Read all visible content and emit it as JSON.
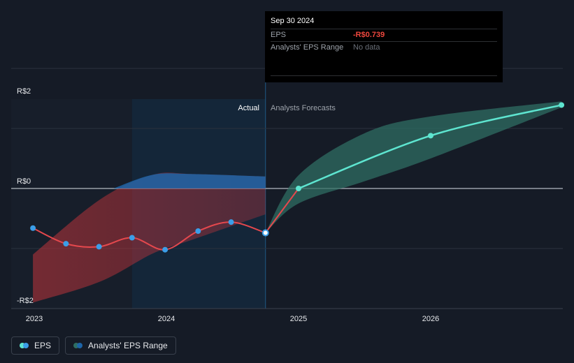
{
  "chart_data": {
    "type": "line",
    "y_tick_labels": [
      "R$2",
      "R$0",
      "-R$2"
    ],
    "x_tick_labels": [
      "2023",
      "2024",
      "2025",
      "2026"
    ],
    "ylim": [
      -2,
      2
    ],
    "xlim": [
      2022.92,
      2026.97
    ],
    "divider_labels": {
      "actual": "Actual",
      "forecast": "Analysts Forecasts"
    },
    "actual_eps": {
      "name": "EPS",
      "x": [
        2022.99,
        2023.24,
        2023.49,
        2023.74,
        2023.99,
        2024.24,
        2024.49,
        2024.75
      ],
      "y": [
        -0.66,
        -0.92,
        -0.97,
        -0.82,
        -1.02,
        -0.71,
        -0.56,
        -0.739
      ]
    },
    "forecast_eps": {
      "x": [
        2024.75,
        2025.0,
        2026.0,
        2026.99
      ],
      "y": [
        -0.739,
        0.0,
        0.88,
        1.39
      ]
    },
    "actual_range": {
      "x": [
        2022.99,
        2023.5,
        2023.9,
        2024.2,
        2024.75
      ],
      "upper": [
        -1.1,
        -0.18,
        0.23,
        0.24,
        0.2
      ],
      "lower": [
        -1.9,
        -1.55,
        -1.08,
        -0.85,
        -0.43
      ]
    },
    "forecast_range": {
      "x": [
        2024.75,
        2025.0,
        2025.5,
        2026.0,
        2026.99
      ],
      "upper": [
        -0.739,
        0.22,
        0.92,
        1.2,
        1.45
      ],
      "lower": [
        -0.739,
        -0.25,
        0.12,
        0.5,
        1.35
      ]
    },
    "shaded_period": [
      2023.74,
      2024.75
    ],
    "grid": true,
    "legend_position": "bottom-left"
  },
  "tooltip": {
    "date": "Sep 30 2024",
    "eps_label": "EPS",
    "eps_value": "-R$0.739",
    "range_label": "Analysts' EPS Range",
    "range_value": "No data"
  },
  "legend": {
    "eps_label": "EPS",
    "range_label": "Analysts' EPS Range"
  },
  "colors": {
    "actual_line": "#e5484d",
    "forecast_line": "#5ee5d0",
    "marker": "#3b9ee8",
    "range_actual": "#b8343a",
    "range_forecast": "#2f6e63",
    "range_upper_blue": "#1d65a8"
  }
}
